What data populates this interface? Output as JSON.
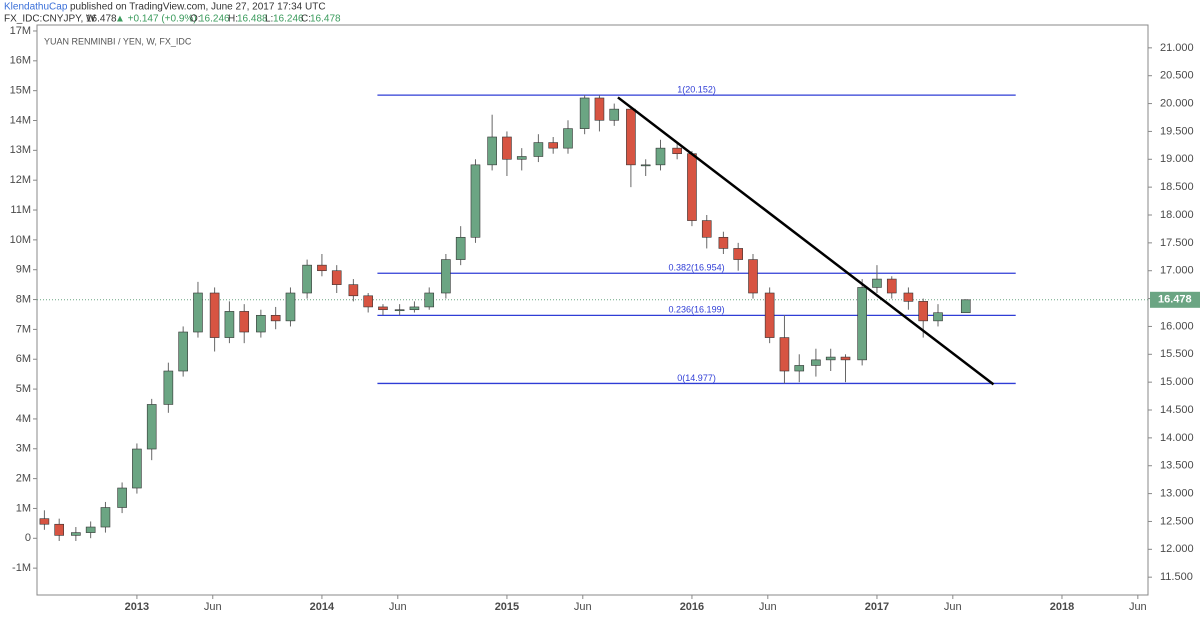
{
  "header": {
    "author": "KlendathuCap",
    "published": "published on TradingView.com, June 27, 2017 17:34 UTC",
    "symbol": "FX_IDC:CNYJPY, W",
    "last": "16.478",
    "change": "▲ +0.147 (+0.9%)",
    "o_label": "O:",
    "o": "16.246",
    "h_label": "H:",
    "h": "16.488",
    "l_label": "L:",
    "l": "16.246",
    "c_label": "C:",
    "c": "16.478"
  },
  "chart_data": {
    "type": "candlestick",
    "title": "YUAN RENMINBI / YEN, W, FX_IDC",
    "up_color": "#6ba583",
    "down_color": "#d75442",
    "x": [
      2012.5,
      2012.58,
      2012.67,
      2012.75,
      2012.83,
      2012.92,
      2013.0,
      2013.08,
      2013.17,
      2013.25,
      2013.33,
      2013.42,
      2013.5,
      2013.58,
      2013.67,
      2013.75,
      2013.83,
      2013.92,
      2014.0,
      2014.08,
      2014.17,
      2014.25,
      2014.33,
      2014.42,
      2014.5,
      2014.58,
      2014.67,
      2014.75,
      2014.83,
      2014.92,
      2015.0,
      2015.08,
      2015.17,
      2015.25,
      2015.33,
      2015.42,
      2015.5,
      2015.58,
      2015.67,
      2015.75,
      2015.83,
      2015.92,
      2016.0,
      2016.08,
      2016.17,
      2016.25,
      2016.33,
      2016.42,
      2016.5,
      2016.58,
      2016.67,
      2016.75,
      2016.83,
      2016.92,
      2017.0,
      2017.08,
      2017.17,
      2017.25,
      2017.33,
      2017.48
    ],
    "open": [
      12.55,
      12.45,
      12.25,
      12.3,
      12.4,
      12.75,
      13.1,
      13.8,
      14.6,
      15.2,
      15.9,
      16.6,
      15.8,
      16.27,
      15.9,
      16.2,
      16.1,
      16.6,
      17.1,
      17.0,
      16.75,
      16.55,
      16.35,
      16.3,
      16.3,
      16.35,
      16.6,
      17.2,
      17.6,
      18.9,
      19.4,
      19.0,
      19.05,
      19.3,
      19.2,
      19.55,
      20.1,
      19.7,
      19.9,
      18.9,
      18.9,
      19.2,
      19.1,
      17.9,
      17.6,
      17.4,
      17.2,
      16.6,
      15.8,
      15.2,
      15.3,
      15.4,
      15.45,
      15.4,
      16.7,
      16.85,
      16.6,
      16.45,
      16.1,
      16.246
    ],
    "high": [
      12.7,
      12.55,
      12.4,
      12.5,
      12.85,
      13.2,
      13.9,
      14.7,
      15.35,
      16.0,
      16.8,
      16.7,
      16.45,
      16.4,
      16.3,
      16.35,
      16.7,
      17.2,
      17.3,
      17.1,
      16.85,
      16.6,
      16.4,
      16.4,
      16.45,
      16.7,
      17.3,
      17.8,
      19.0,
      19.8,
      19.5,
      19.2,
      19.45,
      19.4,
      19.7,
      20.152,
      20.15,
      20.0,
      19.95,
      19.0,
      19.35,
      19.3,
      19.15,
      18.0,
      17.7,
      17.5,
      17.3,
      16.7,
      16.2,
      15.5,
      15.6,
      15.6,
      15.5,
      16.85,
      17.1,
      16.9,
      16.7,
      16.5,
      16.4,
      16.488
    ],
    "low": [
      12.35,
      12.15,
      12.15,
      12.2,
      12.3,
      12.65,
      13.0,
      13.6,
      14.45,
      15.1,
      15.8,
      15.55,
      15.7,
      15.7,
      15.8,
      15.95,
      16.0,
      16.5,
      16.9,
      16.6,
      16.45,
      16.25,
      16.2,
      16.2,
      16.25,
      16.3,
      16.5,
      17.1,
      17.5,
      18.8,
      18.7,
      18.8,
      18.95,
      19.1,
      19.1,
      19.45,
      19.5,
      19.6,
      18.5,
      18.7,
      18.8,
      19.0,
      17.8,
      17.4,
      17.3,
      17.0,
      16.5,
      15.7,
      14.977,
      15.0,
      15.1,
      15.2,
      15.0,
      15.3,
      16.6,
      16.5,
      16.3,
      15.8,
      16.0,
      16.246
    ],
    "close": [
      12.45,
      12.25,
      12.3,
      12.4,
      12.75,
      13.1,
      13.8,
      14.6,
      15.2,
      15.9,
      16.6,
      15.8,
      16.27,
      15.9,
      16.2,
      16.1,
      16.6,
      17.1,
      17.0,
      16.75,
      16.55,
      16.35,
      16.3,
      16.3,
      16.35,
      16.6,
      17.2,
      17.6,
      18.9,
      19.4,
      19.0,
      19.05,
      19.3,
      19.2,
      19.55,
      20.1,
      19.7,
      19.9,
      18.9,
      18.9,
      19.2,
      19.1,
      17.9,
      17.6,
      17.4,
      17.2,
      16.6,
      15.8,
      15.2,
      15.3,
      15.4,
      15.45,
      15.4,
      16.7,
      16.85,
      16.6,
      16.45,
      16.1,
      16.246,
      16.478
    ],
    "fib_color": "#2f3dd6",
    "fib_levels": [
      {
        "value": 20.152,
        "label": "1(20.152)"
      },
      {
        "value": 16.954,
        "label": "0.382(16.954)"
      },
      {
        "value": 16.199,
        "label": "0.236(16.199)"
      },
      {
        "value": 14.977,
        "label": "0(14.977)"
      }
    ],
    "fib_xrange": [
      2014.3,
      2017.75
    ],
    "trendline": {
      "x": [
        2015.6,
        2017.63
      ],
      "y": [
        20.11,
        14.96
      ]
    },
    "last_price_color": "#6ba583",
    "xlim": [
      2012.46,
      2018.465
    ],
    "xticks": [
      2013,
      {
        "value": 2013.41,
        "label": "Jun"
      },
      2014,
      {
        "value": 2014.41,
        "label": "Jun"
      },
      2015,
      {
        "value": 2015.41,
        "label": "Jun"
      },
      2016,
      {
        "value": 2016.41,
        "label": "Jun"
      },
      2017,
      {
        "value": 2017.41,
        "label": "Jun"
      },
      2018,
      {
        "value": 2018.41,
        "label": "Jun"
      }
    ],
    "ylim": [
      11.18,
      21.41
    ],
    "yticks": [
      {
        "value": 11.5,
        "label": "11.500"
      },
      {
        "value": 12,
        "label": "12.000"
      },
      {
        "value": 12.5,
        "label": "12.500"
      },
      {
        "value": 13,
        "label": "13.000"
      },
      {
        "value": 13.5,
        "label": "13.500"
      },
      {
        "value": 14,
        "label": "14.000"
      },
      {
        "value": 14.5,
        "label": "14.500"
      },
      {
        "value": 15,
        "label": "15.000"
      },
      {
        "value": 15.5,
        "label": "15.500"
      },
      {
        "value": 16,
        "label": "16.000"
      },
      {
        "value": 16.5,
        "label": "16.500"
      },
      {
        "value": 17,
        "label": "17.000"
      },
      {
        "value": 17.5,
        "label": "17.500"
      },
      {
        "value": 18,
        "label": "18.000"
      },
      {
        "value": 18.5,
        "label": "18.500"
      },
      {
        "value": 19,
        "label": "19.000"
      },
      {
        "value": 19.5,
        "label": "19.500"
      },
      {
        "value": 20,
        "label": "20.000"
      },
      {
        "value": 20.5,
        "label": "20.500"
      },
      {
        "value": 21,
        "label": "21.000"
      }
    ],
    "y2lim": [
      -1900000,
      17200000
    ],
    "y2ticks": [
      {
        "value": -1000000,
        "label": "-1M"
      },
      0,
      {
        "value": 1000000,
        "label": "1M"
      },
      {
        "value": 2000000,
        "label": "2M"
      },
      {
        "value": 3000000,
        "label": "3M"
      },
      {
        "value": 4000000,
        "label": "4M"
      },
      {
        "value": 5000000,
        "label": "5M"
      },
      {
        "value": 6000000,
        "label": "6M"
      },
      {
        "value": 7000000,
        "label": "7M"
      },
      {
        "value": 8000000,
        "label": "8M"
      },
      {
        "value": 9000000,
        "label": "9M"
      },
      {
        "value": 10000000,
        "label": "10M"
      },
      {
        "value": 11000000,
        "label": "11M"
      },
      {
        "value": 12000000,
        "label": "12M"
      },
      {
        "value": 13000000,
        "label": "13M"
      },
      {
        "value": 14000000,
        "label": "14M"
      },
      {
        "value": 15000000,
        "label": "15M"
      },
      {
        "value": 16000000,
        "label": "16M"
      },
      {
        "value": 17000000,
        "label": "17M"
      }
    ]
  }
}
